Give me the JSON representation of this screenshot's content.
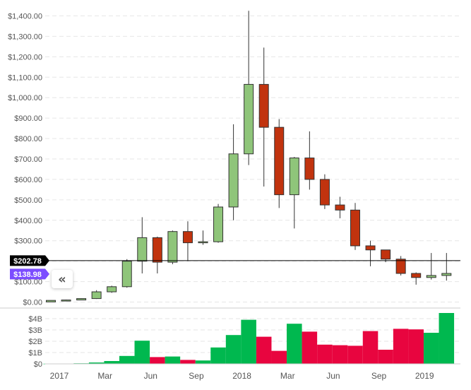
{
  "chart_data": [
    {
      "type": "candlestick",
      "y_tick_labels": [
        "$0.00",
        "$100.00",
        "$200.00",
        "$300.00",
        "$400.00",
        "$500.00",
        "$600.00",
        "$700.00",
        "$800.00",
        "$900.00",
        "$1,000.00",
        "$1,100.00",
        "$1,200.00",
        "$1,300.00",
        "$1,400.00"
      ],
      "ylim": [
        0,
        1450
      ],
      "grid": true,
      "price_line": {
        "value": 202.78,
        "label": "$202.78",
        "color": "#000000"
      },
      "price_tag": {
        "value": 138.98,
        "label": "$138.98",
        "color": "#7c4dff"
      },
      "up_color": "#8fc57a",
      "down_color": "#c1330e",
      "candles": [
        {
          "open": 0.7,
          "high": 1.1,
          "low": 0.5,
          "close": 8
        },
        {
          "open": 8,
          "high": 12,
          "low": 7,
          "close": 10
        },
        {
          "open": 10,
          "high": 18,
          "low": 9,
          "close": 17
        },
        {
          "open": 17,
          "high": 58,
          "low": 15,
          "close": 50
        },
        {
          "open": 50,
          "high": 80,
          "low": 45,
          "close": 75
        },
        {
          "open": 75,
          "high": 210,
          "low": 70,
          "close": 200
        },
        {
          "open": 200,
          "high": 415,
          "low": 140,
          "close": 315
        },
        {
          "open": 315,
          "high": 320,
          "low": 140,
          "close": 195
        },
        {
          "open": 195,
          "high": 350,
          "low": 185,
          "close": 345
        },
        {
          "open": 345,
          "high": 395,
          "low": 200,
          "close": 290
        },
        {
          "open": 290,
          "high": 350,
          "low": 280,
          "close": 295
        },
        {
          "open": 295,
          "high": 480,
          "low": 290,
          "close": 465
        },
        {
          "open": 465,
          "high": 870,
          "low": 400,
          "close": 725
        },
        {
          "open": 725,
          "high": 1425,
          "low": 670,
          "close": 1065
        },
        {
          "open": 1065,
          "high": 1245,
          "low": 565,
          "close": 855
        },
        {
          "open": 855,
          "high": 895,
          "low": 460,
          "close": 525
        },
        {
          "open": 525,
          "high": 710,
          "low": 360,
          "close": 705
        },
        {
          "open": 705,
          "high": 835,
          "low": 550,
          "close": 600
        },
        {
          "open": 600,
          "high": 625,
          "low": 455,
          "close": 475
        },
        {
          "open": 475,
          "high": 515,
          "low": 410,
          "close": 450
        },
        {
          "open": 450,
          "high": 485,
          "low": 255,
          "close": 275
        },
        {
          "open": 275,
          "high": 300,
          "low": 175,
          "close": 255
        },
        {
          "open": 255,
          "high": 255,
          "low": 195,
          "close": 210
        },
        {
          "open": 210,
          "high": 225,
          "low": 130,
          "close": 140
        },
        {
          "open": 140,
          "high": 145,
          "low": 85,
          "close": 120
        },
        {
          "open": 120,
          "high": 240,
          "low": 110,
          "close": 130
        },
        {
          "open": 130,
          "high": 240,
          "low": 105,
          "close": 140
        }
      ]
    },
    {
      "type": "bar",
      "y_tick_labels": [
        "$0",
        "$1B",
        "$2B",
        "$3B",
        "$4B"
      ],
      "ylim": [
        0,
        4.8
      ],
      "grid": true,
      "up_color": "#00b84f",
      "down_color": "#e8053f",
      "x_tick_labels": [
        "2017",
        "Mar",
        "Jun",
        "Sep",
        "2018",
        "Mar",
        "Jun",
        "Sep",
        "2019"
      ],
      "volumes": [
        {
          "value": 0.01,
          "up": true
        },
        {
          "value": 0.02,
          "up": true
        },
        {
          "value": 0.05,
          "up": true
        },
        {
          "value": 0.12,
          "up": true
        },
        {
          "value": 0.25,
          "up": true
        },
        {
          "value": 0.7,
          "up": true
        },
        {
          "value": 2.05,
          "up": true
        },
        {
          "value": 0.6,
          "up": false
        },
        {
          "value": 0.65,
          "up": true
        },
        {
          "value": 0.35,
          "up": false
        },
        {
          "value": 0.3,
          "up": true
        },
        {
          "value": 1.45,
          "up": true
        },
        {
          "value": 2.55,
          "up": true
        },
        {
          "value": 3.9,
          "up": true
        },
        {
          "value": 2.4,
          "up": false
        },
        {
          "value": 1.15,
          "up": false
        },
        {
          "value": 3.55,
          "up": true
        },
        {
          "value": 2.85,
          "up": false
        },
        {
          "value": 1.7,
          "up": false
        },
        {
          "value": 1.65,
          "up": false
        },
        {
          "value": 1.6,
          "up": false
        },
        {
          "value": 2.9,
          "up": false
        },
        {
          "value": 1.25,
          "up": false
        },
        {
          "value": 3.1,
          "up": false
        },
        {
          "value": 3.05,
          "up": false
        },
        {
          "value": 2.75,
          "up": true
        },
        {
          "value": 4.5,
          "up": true
        }
      ]
    }
  ],
  "controls": {
    "collapse_icon": "double-chevron-left-icon",
    "collapse_glyph": "«"
  }
}
